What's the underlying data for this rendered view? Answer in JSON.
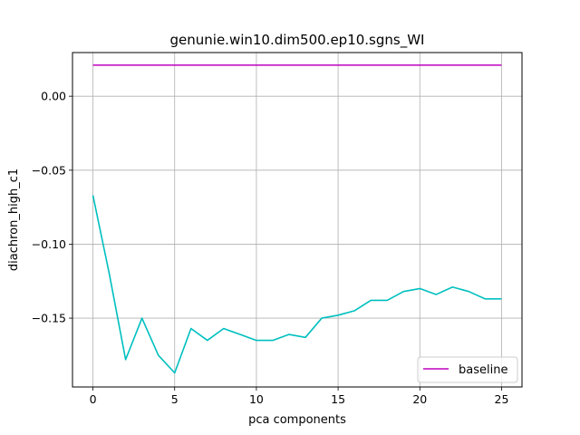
{
  "chart_data": {
    "type": "line",
    "title": "genunie.win10.dim500.ep10.sgns_WI",
    "xlabel": "pca components",
    "ylabel": "diachron_high_c1",
    "xlim": [
      -1.25,
      26.25
    ],
    "ylim": [
      -0.1965,
      0.0295
    ],
    "xticks": [
      0,
      5,
      10,
      15,
      20,
      25
    ],
    "yticks": [
      0.0,
      -0.05,
      -0.1,
      -0.15
    ],
    "ytick_labels": [
      "0.00",
      "−0.05",
      "−0.10",
      "−0.15"
    ],
    "grid": true,
    "legend_position": "lower right",
    "series": [
      {
        "name": "",
        "color": "#00bfbf",
        "x": [
          0,
          1,
          2,
          3,
          4,
          5,
          6,
          7,
          8,
          9,
          10,
          11,
          12,
          13,
          14,
          15,
          16,
          17,
          18,
          19,
          20,
          21,
          22,
          23,
          24,
          25
        ],
        "y": [
          -0.067,
          -0.12,
          -0.178,
          -0.15,
          -0.175,
          -0.187,
          -0.157,
          -0.165,
          -0.157,
          -0.161,
          -0.165,
          -0.165,
          -0.161,
          -0.163,
          -0.15,
          -0.148,
          -0.145,
          -0.138,
          -0.138,
          -0.132,
          -0.13,
          -0.134,
          -0.129,
          -0.132,
          -0.137,
          -0.137
        ]
      },
      {
        "name": "baseline",
        "color": "#bf00bf",
        "x": [
          0,
          25
        ],
        "y": [
          0.021,
          0.021
        ]
      }
    ]
  }
}
